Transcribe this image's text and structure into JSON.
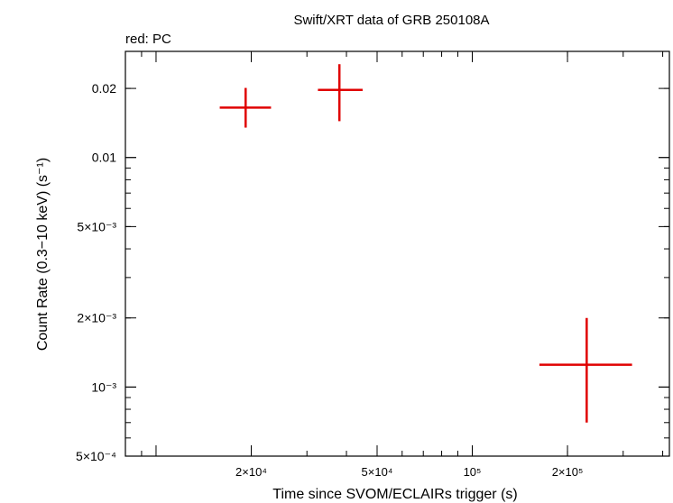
{
  "chart_data": {
    "type": "scatter",
    "title": "Swift/XRT data of GRB 250108A",
    "subtitle": "red: PC",
    "xlabel": "Time since SVOM/ECLAIRs trigger (s)",
    "ylabel": "Count Rate (0.3−10 keV) (s⁻¹)",
    "xscale": "log",
    "yscale": "log",
    "xlim": [
      8000,
      420000
    ],
    "ylim": [
      0.0005,
      0.029
    ],
    "grid": false,
    "x_ticks": [
      {
        "value": 20000,
        "label": "2×10⁴"
      },
      {
        "value": 50000,
        "label": "5×10⁴"
      },
      {
        "value": 100000,
        "label": "10⁵"
      },
      {
        "value": 200000,
        "label": "2×10⁵"
      }
    ],
    "y_ticks": [
      {
        "value": 0.0005,
        "label": "5×10⁻⁴"
      },
      {
        "value": 0.001,
        "label": "10⁻³"
      },
      {
        "value": 0.002,
        "label": "2×10⁻³"
      },
      {
        "value": 0.005,
        "label": "5×10⁻³"
      },
      {
        "value": 0.01,
        "label": "0.01"
      },
      {
        "value": 0.02,
        "label": "0.02"
      }
    ],
    "series": [
      {
        "name": "PC",
        "color": "#e00000",
        "points": [
          {
            "x": 19200,
            "x_lo": 15900,
            "x_hi": 23100,
            "y": 0.0165,
            "y_lo": 0.0135,
            "y_hi": 0.0201
          },
          {
            "x": 38000,
            "x_lo": 32500,
            "x_hi": 45000,
            "y": 0.0197,
            "y_lo": 0.0144,
            "y_hi": 0.0255
          },
          {
            "x": 230000,
            "x_lo": 163000,
            "x_hi": 320000,
            "y": 0.00125,
            "y_lo": 0.0007,
            "y_hi": 0.002
          }
        ]
      }
    ]
  }
}
